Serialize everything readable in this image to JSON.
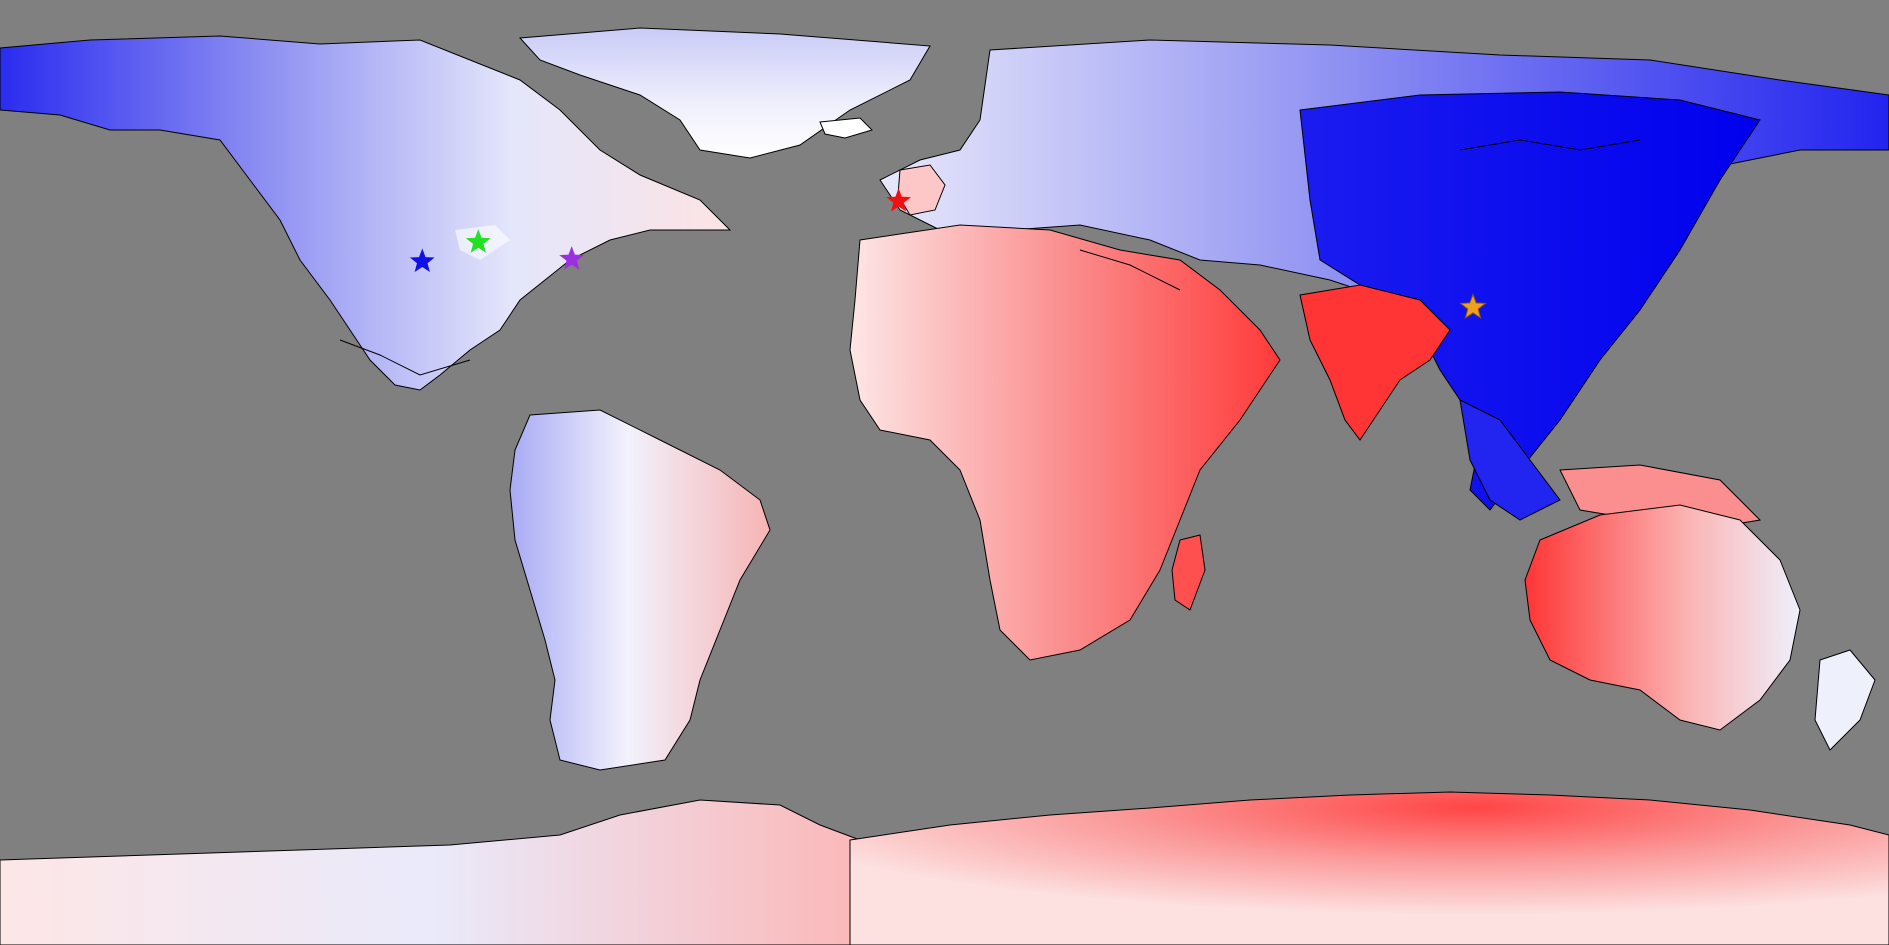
{
  "map": {
    "projection": "equirectangular",
    "ocean_color": "#808080",
    "coastline_color": "#000000",
    "palette": {
      "strong_blue": "#0000ee",
      "mid_blue": "#8a8cf2",
      "light_blue": "#e4e6fb",
      "white": "#ffffff",
      "light_red": "#fdd6d6",
      "mid_red": "#fb8e8e",
      "strong_red": "#ff3535"
    },
    "markers": [
      {
        "id": "marker-west-us",
        "shape": "star",
        "color": "#1010e8",
        "lon": -105,
        "lat": 40
      },
      {
        "id": "marker-central-us",
        "shape": "star",
        "color": "#22e022",
        "lon": -93,
        "lat": 44
      },
      {
        "id": "marker-east-us",
        "shape": "star",
        "color": "#9b30e0",
        "lon": -73,
        "lat": 40.5
      },
      {
        "id": "marker-uk",
        "shape": "star",
        "color": "#ee1111",
        "lon": -3,
        "lat": 52.5
      },
      {
        "id": "marker-east-asia",
        "shape": "star",
        "color": "#f0a020",
        "lon": 120,
        "lat": 30.5
      }
    ]
  }
}
